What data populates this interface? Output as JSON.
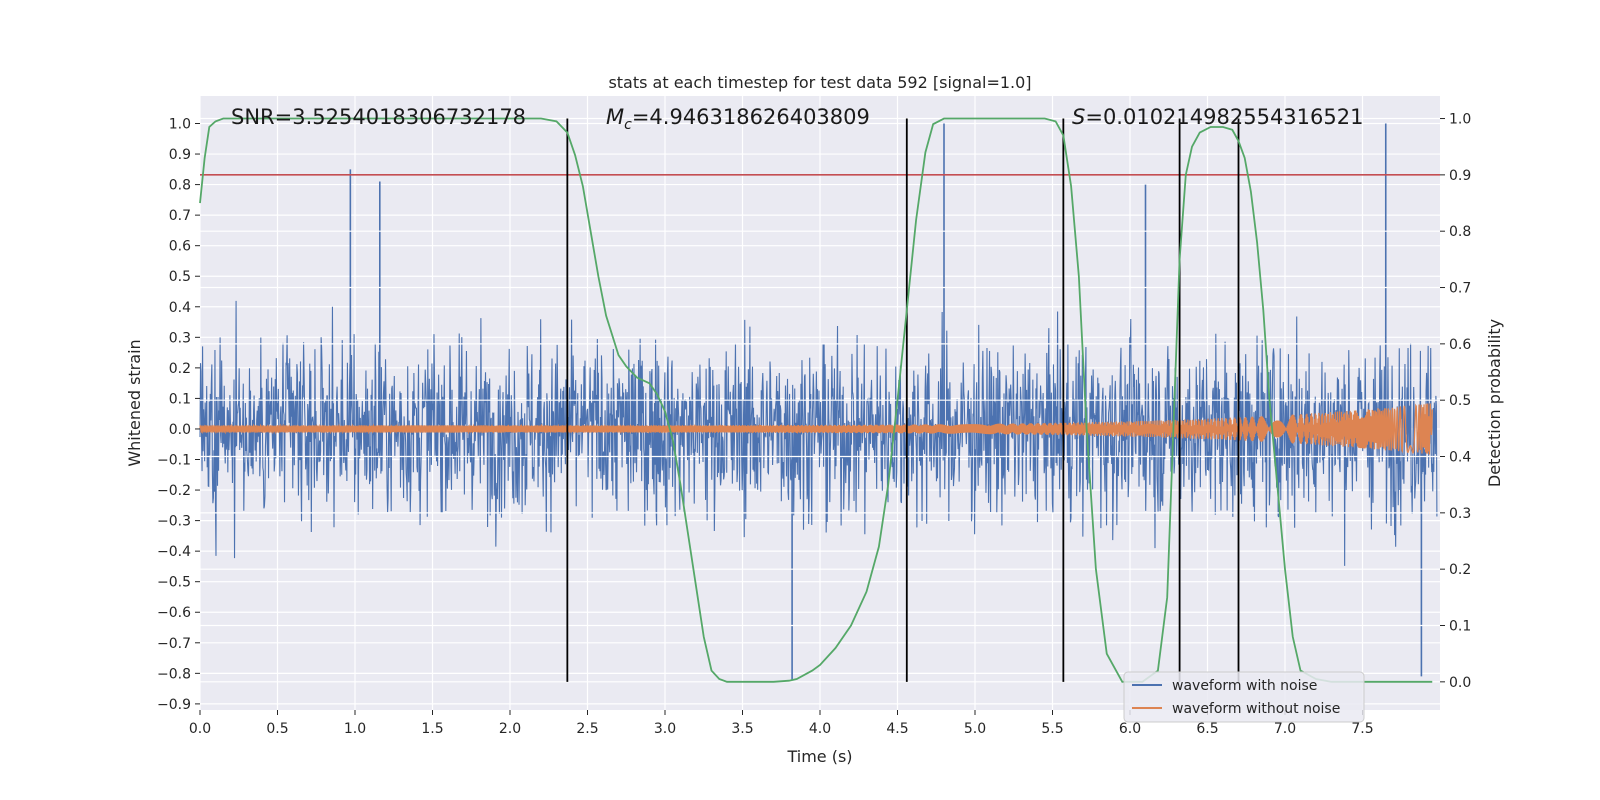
{
  "chart_data": {
    "type": "line",
    "title": "stats at each timestep for test data 592 [signal=1.0]",
    "xlabel": "Time (s)",
    "ylabel_left": "Whitened strain",
    "ylabel_right": "Detection probability",
    "xlim": [
      0.0,
      8.0
    ],
    "ylim_left": [
      -0.92,
      1.09
    ],
    "ylim_right": [
      -0.05,
      1.04
    ],
    "x_ticks": [
      "0.0",
      "0.5",
      "1.0",
      "1.5",
      "2.0",
      "2.5",
      "3.0",
      "3.5",
      "4.0",
      "4.5",
      "5.0",
      "5.5",
      "6.0",
      "6.5",
      "7.0",
      "7.5"
    ],
    "y_left_ticks": [
      "1.0",
      "0.9",
      "0.8",
      "0.7",
      "0.6",
      "0.5",
      "0.4",
      "0.3",
      "0.2",
      "0.1",
      "0.0",
      "−0.1",
      "−0.2",
      "−0.3",
      "−0.4",
      "−0.5",
      "−0.6",
      "−0.7",
      "−0.8",
      "−0.9"
    ],
    "y_right_ticks": [
      "1.0",
      "0.9",
      "0.8",
      "0.7",
      "0.6",
      "0.5",
      "0.4",
      "0.3",
      "0.2",
      "0.1",
      "0.0"
    ],
    "annotations": {
      "snr": "SNR=3.5254018306732178",
      "mc_symbol": "M",
      "mc_sub": "c",
      "mc_value": "=4.946318626403809",
      "s_symbol": "S",
      "s_value": "=0.010214982554316521"
    },
    "threshold": {
      "axis": "right",
      "value": 0.9,
      "color": "#c44e52"
    },
    "vertical_lines": {
      "x": [
        2.37,
        4.56,
        5.57,
        6.32,
        6.7
      ],
      "right_range": [
        0.0,
        1.0
      ],
      "color": "#000000"
    },
    "series": [
      {
        "name": "waveform with noise",
        "axis": "left",
        "color": "#4c72b0",
        "envelope_note": "dense noise, amplitude roughly within ±0.5 with spikes",
        "peak_spikes": [
          {
            "x": 0.97,
            "y": 0.85
          },
          {
            "x": 1.16,
            "y": 0.81
          },
          {
            "x": 4.8,
            "y": 1.0
          },
          {
            "x": 7.65,
            "y": 1.0
          },
          {
            "x": 6.1,
            "y": 0.8
          },
          {
            "x": 3.82,
            "y": -0.82
          },
          {
            "x": 7.88,
            "y": -0.81
          },
          {
            "x": 0.82,
            "y": 0.11
          }
        ]
      },
      {
        "name": "waveform without noise",
        "axis": "left",
        "color": "#dd8452",
        "amplitude_start": 0.012,
        "amplitude_end": 0.085,
        "chirp_end_time": 7.95
      },
      {
        "name": "detection probability",
        "axis": "right",
        "color": "#55a868",
        "x": [
          0.0,
          0.03,
          0.06,
          0.1,
          0.15,
          0.2,
          0.3,
          1.0,
          2.0,
          2.2,
          2.3,
          2.37,
          2.42,
          2.47,
          2.52,
          2.57,
          2.62,
          2.7,
          2.75,
          2.82,
          2.9,
          2.95,
          3.0,
          3.05,
          3.1,
          3.15,
          3.2,
          3.25,
          3.3,
          3.35,
          3.4,
          3.5,
          3.6,
          3.7,
          3.8,
          3.85,
          3.95,
          4.0,
          4.1,
          4.2,
          4.3,
          4.38,
          4.44,
          4.5,
          4.56,
          4.62,
          4.68,
          4.73,
          4.8,
          5.0,
          5.45,
          5.52,
          5.57,
          5.62,
          5.67,
          5.72,
          5.78,
          5.85,
          5.95,
          6.08,
          6.18,
          6.24,
          6.28,
          6.32,
          6.36,
          6.4,
          6.45,
          6.52,
          6.6,
          6.66,
          6.7,
          6.74,
          6.78,
          6.82,
          6.86,
          6.9,
          6.95,
          7.0,
          7.05,
          7.1,
          7.2,
          7.3,
          7.5,
          7.95
        ],
        "y": [
          0.85,
          0.93,
          0.985,
          0.995,
          1.0,
          1.0,
          1.0,
          1.0,
          1.0,
          1.0,
          0.995,
          0.975,
          0.935,
          0.88,
          0.8,
          0.72,
          0.65,
          0.58,
          0.56,
          0.54,
          0.53,
          0.51,
          0.48,
          0.43,
          0.35,
          0.26,
          0.17,
          0.08,
          0.02,
          0.005,
          0.0,
          0.0,
          0.0,
          0.0,
          0.002,
          0.005,
          0.02,
          0.03,
          0.06,
          0.1,
          0.16,
          0.24,
          0.35,
          0.5,
          0.66,
          0.82,
          0.94,
          0.99,
          1.0,
          1.0,
          1.0,
          0.995,
          0.97,
          0.88,
          0.72,
          0.45,
          0.2,
          0.05,
          0.0,
          0.0,
          0.02,
          0.15,
          0.45,
          0.75,
          0.9,
          0.95,
          0.975,
          0.985,
          0.985,
          0.98,
          0.96,
          0.93,
          0.87,
          0.78,
          0.66,
          0.5,
          0.35,
          0.2,
          0.08,
          0.02,
          0.005,
          0.0,
          0.0,
          0.0
        ]
      }
    ],
    "legend": {
      "position": "lower-right",
      "entries": [
        {
          "label": "waveform with noise",
          "color": "#4c72b0"
        },
        {
          "label": "waveform without noise",
          "color": "#dd8452"
        }
      ]
    },
    "grid": true,
    "background": "#eaeaf2"
  }
}
